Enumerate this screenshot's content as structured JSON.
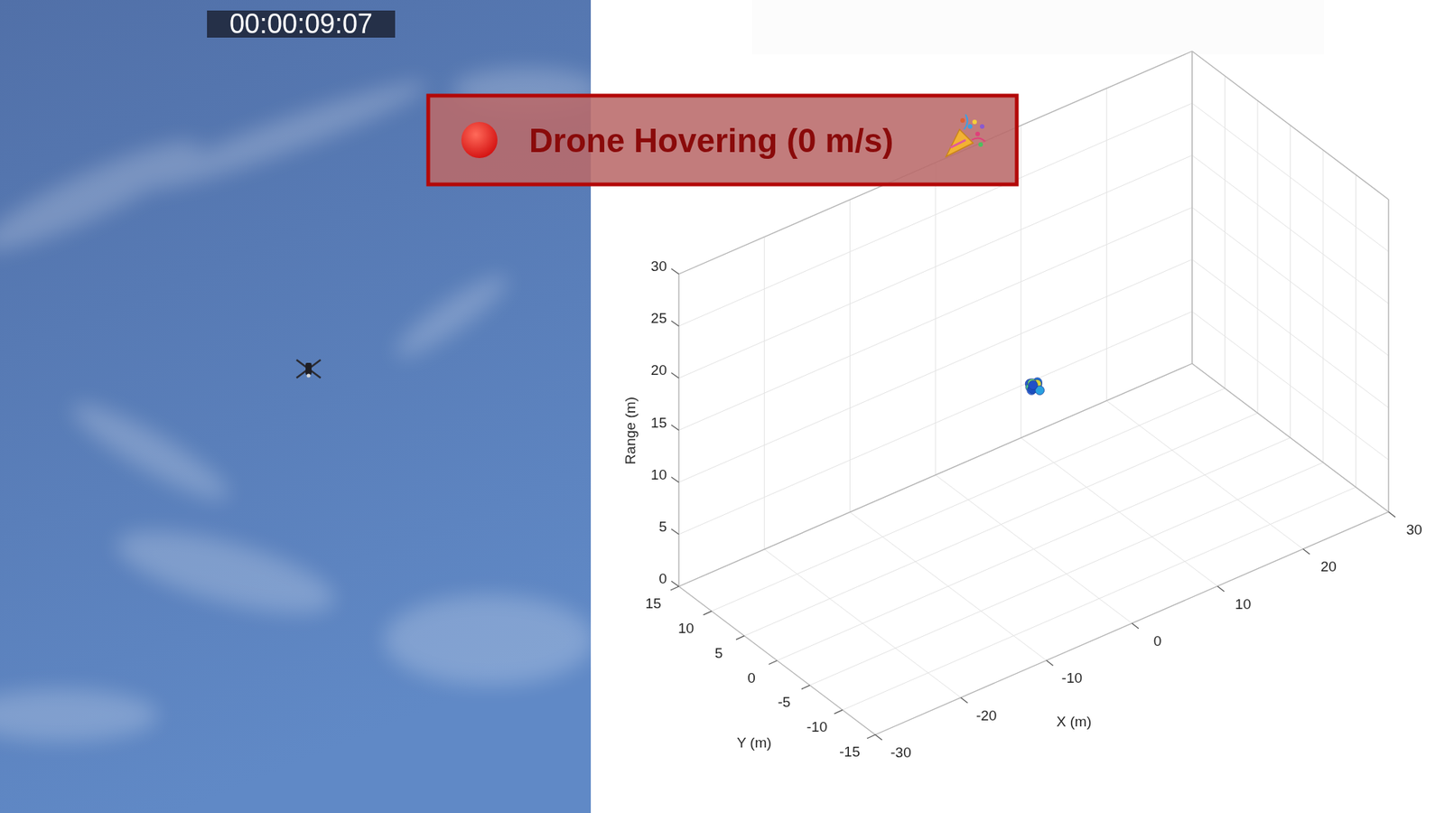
{
  "video": {
    "timestamp": "00:00:09:07"
  },
  "banner": {
    "text": "Drone Hovering (0 m/s)"
  },
  "chart_data": {
    "type": "scatter3d",
    "x_label": "X (m)",
    "y_label": "Y (m)",
    "z_label": "Range (m)",
    "x": [
      -0.3,
      0.2,
      0.5,
      -0.1,
      0.3,
      -0.4,
      0.1,
      0.4,
      -0.2,
      0.0
    ],
    "y": [
      0.2,
      -0.3,
      0.1,
      0.4,
      -0.1,
      -0.2,
      0.3,
      -0.4,
      0.0,
      0.1
    ],
    "z": [
      15.9,
      16.1,
      15.6,
      15.4,
      15.8,
      15.5,
      15.2,
      15.3,
      16.0,
      15.7
    ],
    "colors": [
      "#2a5bd7",
      "#1f77e0",
      "#21b3d6",
      "#4cc88a",
      "#d6d23a",
      "#3b6fe0",
      "#1a4fc0",
      "#29a0e0",
      "#6fd070",
      "#2050c8"
    ],
    "xlim": [
      -30,
      30
    ],
    "ylim": [
      -15,
      15
    ],
    "zlim": [
      0,
      30
    ],
    "xticks": [
      -30,
      -20,
      -10,
      0,
      10,
      20,
      30
    ],
    "yticks": [
      -15,
      -10,
      -5,
      0,
      5,
      10,
      15
    ],
    "zticks": [
      0,
      5,
      10,
      15,
      20,
      25,
      30
    ],
    "grid": true,
    "marker": "circle"
  }
}
